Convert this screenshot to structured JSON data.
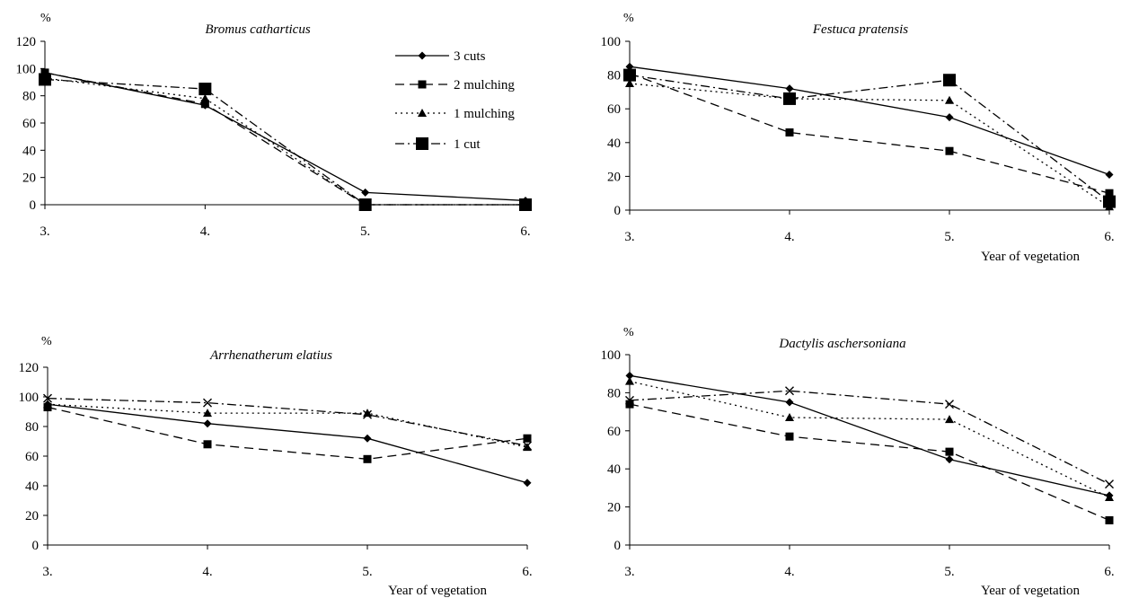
{
  "series_styles": [
    {
      "name": "3 cuts",
      "dash": "",
      "marker": "diamond"
    },
    {
      "name": "2 mulching",
      "dash": "10,6",
      "marker": "square"
    },
    {
      "name": "1 mulching",
      "dash": "2,4",
      "marker": "triangle"
    },
    {
      "name": "1 cut",
      "dash": "10,4,2,4",
      "marker": "bigsquare"
    }
  ],
  "chart_data": [
    {
      "type": "line",
      "title": "Bromus catharticus",
      "ylabel": "%",
      "xlabel": "",
      "categories": [
        "3.",
        "4.",
        "5.",
        "6."
      ],
      "ylim": [
        0,
        120
      ],
      "yticks": [
        "0",
        "20",
        "40",
        "60",
        "80",
        "100",
        "120"
      ],
      "legend": "top-right",
      "series": [
        {
          "name": "3 cuts",
          "values": [
            97,
            73,
            9,
            3
          ]
        },
        {
          "name": "2 mulching",
          "values": [
            97,
            74,
            0,
            0
          ]
        },
        {
          "name": "1 mulching",
          "values": [
            93,
            78,
            0,
            0
          ]
        },
        {
          "name": "1 cut",
          "values": [
            92,
            85,
            0,
            0
          ]
        }
      ]
    },
    {
      "type": "line",
      "title": "Festuca pratensis",
      "ylabel": "%",
      "xlabel": "Year of vegetation",
      "categories": [
        "3.",
        "4.",
        "5.",
        "6."
      ],
      "ylim": [
        0,
        100
      ],
      "yticks": [
        "0",
        "20",
        "40",
        "60",
        "80",
        "100"
      ],
      "series": [
        {
          "name": "3 cuts",
          "values": [
            85,
            72,
            55,
            21
          ]
        },
        {
          "name": "2 mulching",
          "values": [
            81,
            46,
            35,
            10
          ]
        },
        {
          "name": "1 mulching",
          "values": [
            75,
            66,
            65,
            2
          ]
        },
        {
          "name": "1 cut",
          "values": [
            80,
            66,
            77,
            5
          ]
        }
      ]
    },
    {
      "type": "line",
      "title": "Arrhenatherum elatius",
      "ylabel": "%",
      "xlabel": "Year of vegetation",
      "categories": [
        "3.",
        "4.",
        "5.",
        "6."
      ],
      "ylim": [
        0,
        120
      ],
      "yticks": [
        "0",
        "20",
        "40",
        "60",
        "80",
        "100",
        "120"
      ],
      "series": [
        {
          "name": "3 cuts",
          "values": [
            95,
            82,
            72,
            42
          ]
        },
        {
          "name": "2 mulching",
          "values": [
            93,
            68,
            58,
            72
          ]
        },
        {
          "name": "1 mulching",
          "values": [
            95,
            89,
            89,
            66
          ]
        },
        {
          "name": "1 cut",
          "values": [
            99,
            96,
            88,
            67
          ]
        }
      ]
    },
    {
      "type": "line",
      "title": "Dactylis aschersoniana",
      "ylabel": "%",
      "xlabel": "Year of vegetation",
      "categories": [
        "3.",
        "4.",
        "5.",
        "6."
      ],
      "ylim": [
        0,
        100
      ],
      "yticks": [
        "0",
        "20",
        "40",
        "60",
        "80",
        "100"
      ],
      "series": [
        {
          "name": "3 cuts",
          "values": [
            89,
            75,
            45,
            26
          ]
        },
        {
          "name": "2 mulching",
          "values": [
            74,
            57,
            49,
            13
          ]
        },
        {
          "name": "1 mulching",
          "values": [
            86,
            67,
            66,
            25
          ]
        },
        {
          "name": "1 cut",
          "values": [
            76,
            81,
            74,
            32
          ]
        }
      ]
    }
  ]
}
